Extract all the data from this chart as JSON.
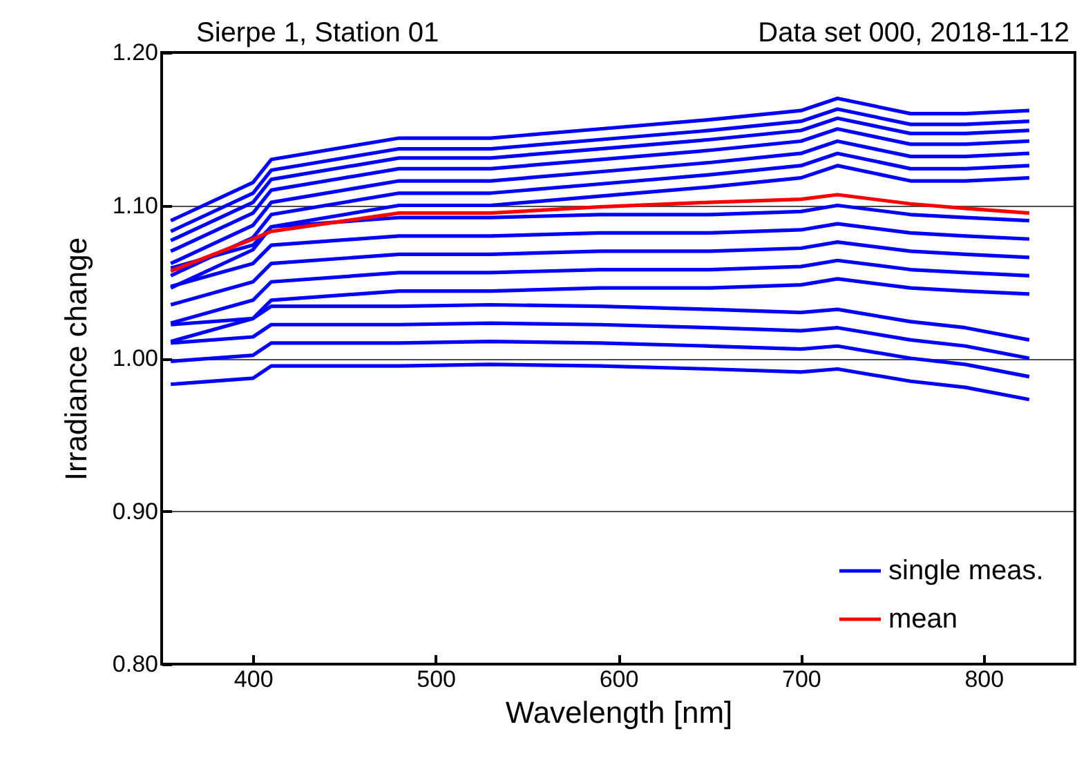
{
  "chart_data": {
    "type": "line",
    "title": "Sierpe 1, Station 01",
    "subtitle": "Data set 000, 2018-11-12",
    "xlabel": "Wavelength [nm]",
    "ylabel": "Irradiance change",
    "x": [
      355,
      400,
      410,
      480,
      530,
      590,
      650,
      700,
      720,
      760,
      790,
      825
    ],
    "series": [
      {
        "name": "single meas.",
        "color": "#0000ff",
        "values": [
          0.983,
          0.987,
          0.995,
          0.995,
          0.996,
          0.995,
          0.993,
          0.991,
          0.993,
          0.985,
          0.981,
          0.973
        ]
      },
      {
        "color": "#0000ff",
        "values": [
          0.998,
          1.002,
          1.01,
          1.01,
          1.011,
          1.01,
          1.008,
          1.006,
          1.008,
          1.0,
          0.996,
          0.988
        ]
      },
      {
        "color": "#0000ff",
        "values": [
          1.01,
          1.014,
          1.022,
          1.022,
          1.023,
          1.022,
          1.02,
          1.018,
          1.02,
          1.012,
          1.008,
          1.0
        ]
      },
      {
        "color": "#0000ff",
        "values": [
          1.022,
          1.026,
          1.034,
          1.034,
          1.035,
          1.034,
          1.032,
          1.03,
          1.032,
          1.024,
          1.02,
          1.012
        ]
      },
      {
        "color": "#0000ff",
        "values": [
          1.011,
          1.026,
          1.038,
          1.044,
          1.044,
          1.046,
          1.046,
          1.048,
          1.052,
          1.046,
          1.044,
          1.042
        ]
      },
      {
        "color": "#0000ff",
        "values": [
          1.023,
          1.038,
          1.05,
          1.056,
          1.056,
          1.058,
          1.058,
          1.06,
          1.064,
          1.058,
          1.056,
          1.054
        ]
      },
      {
        "color": "#0000ff",
        "values": [
          1.035,
          1.05,
          1.062,
          1.068,
          1.068,
          1.07,
          1.07,
          1.072,
          1.076,
          1.07,
          1.068,
          1.066
        ]
      },
      {
        "color": "#0000ff",
        "values": [
          1.047,
          1.062,
          1.074,
          1.08,
          1.08,
          1.082,
          1.082,
          1.084,
          1.088,
          1.082,
          1.08,
          1.078
        ]
      },
      {
        "color": "#0000ff",
        "values": [
          1.059,
          1.074,
          1.086,
          1.092,
          1.092,
          1.094,
          1.094,
          1.096,
          1.1,
          1.094,
          1.092,
          1.09
        ]
      },
      {
        "color": "#0000ff",
        "values": [
          1.046,
          1.071,
          1.086,
          1.1,
          1.1,
          1.106,
          1.112,
          1.118,
          1.126,
          1.116,
          1.116,
          1.118
        ]
      },
      {
        "color": "#0000ff",
        "values": [
          1.054,
          1.079,
          1.094,
          1.108,
          1.108,
          1.114,
          1.12,
          1.126,
          1.134,
          1.124,
          1.124,
          1.126
        ]
      },
      {
        "color": "#0000ff",
        "values": [
          1.062,
          1.087,
          1.102,
          1.116,
          1.116,
          1.122,
          1.128,
          1.134,
          1.142,
          1.132,
          1.132,
          1.134
        ]
      },
      {
        "color": "#0000ff",
        "values": [
          1.07,
          1.095,
          1.11,
          1.124,
          1.124,
          1.13,
          1.136,
          1.142,
          1.15,
          1.14,
          1.14,
          1.142
        ]
      },
      {
        "color": "#0000ff",
        "values": [
          1.077,
          1.102,
          1.117,
          1.131,
          1.131,
          1.137,
          1.143,
          1.149,
          1.157,
          1.147,
          1.147,
          1.149
        ]
      },
      {
        "color": "#0000ff",
        "values": [
          1.083,
          1.108,
          1.123,
          1.137,
          1.137,
          1.143,
          1.149,
          1.155,
          1.163,
          1.153,
          1.153,
          1.155
        ]
      },
      {
        "color": "#0000ff",
        "values": [
          1.09,
          1.115,
          1.13,
          1.144,
          1.144,
          1.15,
          1.156,
          1.162,
          1.17,
          1.16,
          1.16,
          1.162
        ]
      },
      {
        "name": "mean",
        "color": "#ff0000",
        "values": [
          1.057,
          1.078,
          1.083,
          1.095,
          1.095,
          1.099,
          1.102,
          1.104,
          1.107,
          1.101,
          1.098,
          1.095
        ]
      }
    ],
    "xlim": [
      350,
      850
    ],
    "xticks": [
      400,
      500,
      600,
      700,
      800
    ],
    "ylim": [
      0.8,
      1.2
    ],
    "yticks": [
      {
        "value": 0.8,
        "label": "0.80"
      },
      {
        "value": 0.9,
        "label": "0.90"
      },
      {
        "value": 1.0,
        "label": "1.00"
      },
      {
        "value": 1.1,
        "label": "1.10"
      },
      {
        "value": 1.2,
        "label": "1.20"
      }
    ],
    "grid": "y",
    "legend": "bottom right"
  }
}
